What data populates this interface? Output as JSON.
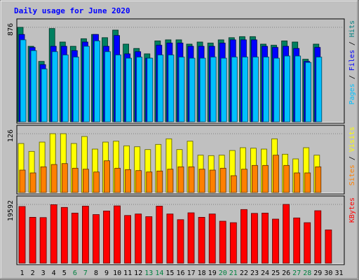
{
  "chart_data": {
    "type": "bar",
    "title": "Daily usage for June 2020",
    "x": [
      1,
      2,
      3,
      4,
      5,
      6,
      7,
      8,
      9,
      10,
      11,
      12,
      13,
      14,
      15,
      16,
      17,
      18,
      19,
      20,
      21,
      22,
      23,
      24,
      25,
      26,
      27,
      28,
      29,
      30,
      31
    ],
    "x_label_colors": [
      "#000000",
      "#000000",
      "#000000",
      "#000000",
      "#000000",
      "#008040",
      "#008040",
      "#000000",
      "#000000",
      "#000000",
      "#000000",
      "#000000",
      "#008040",
      "#008040",
      "#000000",
      "#000000",
      "#000000",
      "#000000",
      "#000000",
      "#008040",
      "#008040",
      "#000000",
      "#000000",
      "#000000",
      "#000000",
      "#000000",
      "#008040",
      "#008040",
      "#000000",
      "#000000",
      "#000000"
    ],
    "panels": [
      {
        "id": "top",
        "max_label": "876",
        "ymax": 876,
        "legend": [
          {
            "text": "Pages",
            "color": "#00c0ff"
          },
          {
            "text": " / ",
            "color": "#000000"
          },
          {
            "text": "Files",
            "color": "#0000ff"
          },
          {
            "text": " / ",
            "color": "#000000"
          },
          {
            "text": "Hits",
            "color": "#008080"
          }
        ],
        "series": [
          {
            "name": "Hits",
            "color": "#008060",
            "values": [
              876,
              700,
              560,
              865,
              740,
              700,
              770,
              810,
              780,
              850,
              720,
              680,
              630,
              750,
              760,
              760,
              720,
              740,
              730,
              760,
              780,
              790,
              790,
              720,
              710,
              750,
              740,
              580,
              720,
              0,
              0
            ]
          },
          {
            "name": "Files",
            "color": "#0000ff",
            "values": [
              810,
              690,
              530,
              700,
              700,
              660,
              740,
              810,
              700,
              800,
              630,
              650,
              590,
              710,
              730,
              730,
              700,
              700,
              700,
              730,
              760,
              760,
              760,
              700,
              690,
              700,
              680,
              560,
              690,
              0,
              0
            ]
          },
          {
            "name": "Pages",
            "color": "#00c0ff",
            "values": [
              760,
              660,
              490,
              650,
              620,
              600,
              700,
              750,
              650,
              620,
              590,
              600,
              590,
              620,
              620,
              600,
              590,
              590,
              600,
              590,
              600,
              600,
              600,
              600,
              590,
              610,
              610,
              550,
              600,
              0,
              0
            ]
          }
        ]
      },
      {
        "id": "middle",
        "max_label": "126",
        "ymax": 126,
        "legend": [
          {
            "text": "Sites",
            "color": "#ff8000"
          },
          {
            "text": " / ",
            "color": "#000000"
          },
          {
            "text": "Visits",
            "color": "#ffff00"
          }
        ],
        "series": [
          {
            "name": "Visits",
            "color": "#ffff00",
            "values": [
              105,
              88,
              108,
              126,
              126,
              105,
              120,
              93,
              108,
              110,
              100,
              98,
              92,
              103,
              115,
              92,
              110,
              80,
              79,
              80,
              90,
              96,
              95,
              93,
              115,
              82,
              72,
              96,
              80,
              0,
              0
            ]
          },
          {
            "name": "Sites",
            "color": "#ff8000",
            "values": [
              48,
              42,
              55,
              60,
              62,
              52,
              50,
              44,
              68,
              52,
              49,
              47,
              44,
              46,
              50,
              55,
              55,
              50,
              48,
              52,
              36,
              50,
              58,
              58,
              80,
              58,
              42,
              42,
              55,
              0,
              0
            ]
          }
        ]
      },
      {
        "id": "bottom",
        "max_label": "19592",
        "ymax": 19592,
        "legend": [
          {
            "text": "KBytes",
            "color": "#ff0000"
          }
        ],
        "series": [
          {
            "name": "KBytes",
            "color": "#ff0000",
            "values": [
              18900,
              15300,
              15200,
              19500,
              18600,
              16700,
              19000,
              16200,
              17400,
              19100,
              15900,
              16400,
              15500,
              19000,
              16400,
              14500,
              16800,
              15300,
              16400,
              14000,
              13500,
              17900,
              16600,
              16700,
              14700,
              19592,
              15100,
              13500,
              17500,
              11100,
              0
            ]
          }
        ]
      }
    ]
  }
}
